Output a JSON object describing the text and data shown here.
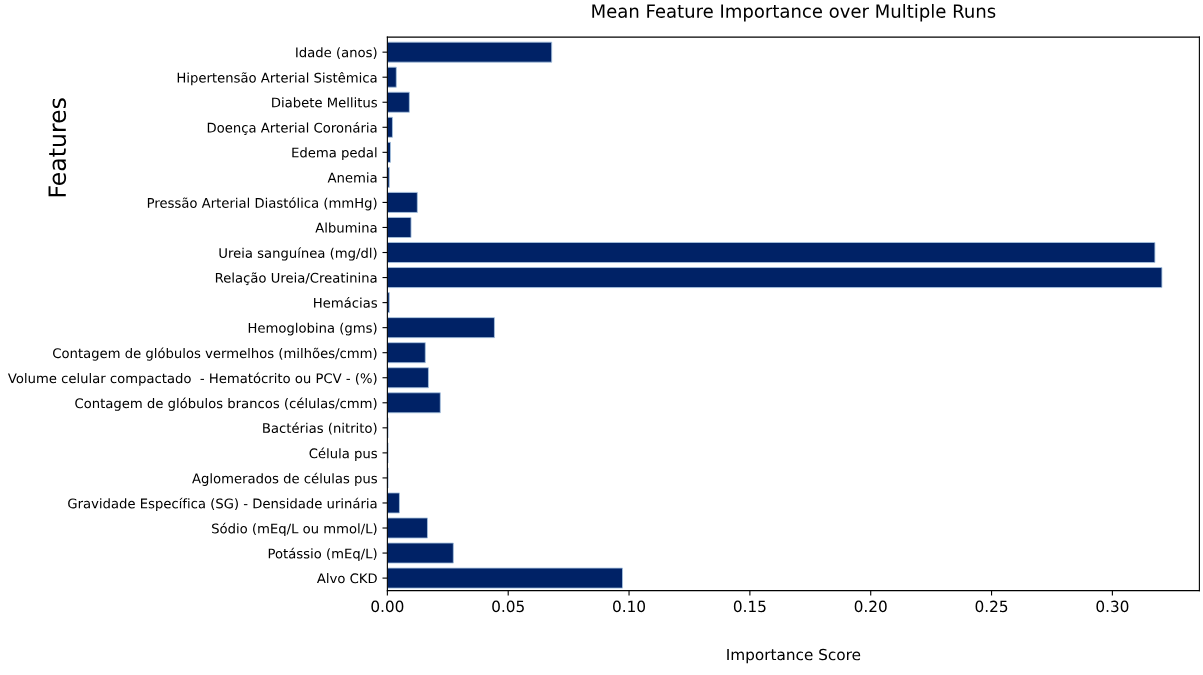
{
  "chart_data": {
    "type": "bar",
    "orientation": "horizontal",
    "title": "Mean Feature Importance over Multiple Runs",
    "xlabel": "Importance Score",
    "ylabel": "Features",
    "categories": [
      "Idade (anos)",
      "Hipertensão Arterial Sistêmica",
      "Diabete Mellitus",
      "Doença Arterial Coronária",
      "Edema pedal",
      "Anemia",
      "Pressão Arterial Diastólica (mmHg)",
      "Albumina",
      "Ureia sanguínea (mg/dl)",
      "Relação Ureia/Creatinina",
      "Hemácias",
      "Hemoglobina (gms)",
      "Contagem de glóbulos vermelhos (milhões/cmm)",
      "Volume celular compactado  - Hematócrito ou PCV - (%)",
      "Contagem de glóbulos brancos (células/cmm)",
      "Bactérias (nitrito)",
      "Célula pus",
      "Aglomerados de células pus",
      "Gravidade Específica (SG) - Densidade urinária",
      "Sódio (mEq/L ou mmol/L)",
      "Potássio (mEq/L)",
      "Alvo CKD"
    ],
    "values": [
      0.068,
      0.0037,
      0.0091,
      0.0021,
      0.0013,
      0.0008,
      0.0124,
      0.0098,
      0.3176,
      0.3205,
      0.0008,
      0.0443,
      0.0157,
      0.017,
      0.0219,
      0.0003,
      0.0003,
      0.0003,
      0.005,
      0.0166,
      0.0273,
      0.0973
    ],
    "color": "#002266",
    "xlim": [
      0,
      0.336
    ],
    "xticks": [
      {
        "value": 0,
        "label": "0.00"
      },
      {
        "value": 0.05,
        "label": "0.05"
      },
      {
        "value": 0.1,
        "label": "0.10"
      },
      {
        "value": 0.15,
        "label": "0.15"
      },
      {
        "value": 0.2,
        "label": "0.20"
      },
      {
        "value": 0.25,
        "label": "0.25"
      },
      {
        "value": 0.3,
        "label": "0.30"
      }
    ],
    "grid": false,
    "legend": false
  }
}
